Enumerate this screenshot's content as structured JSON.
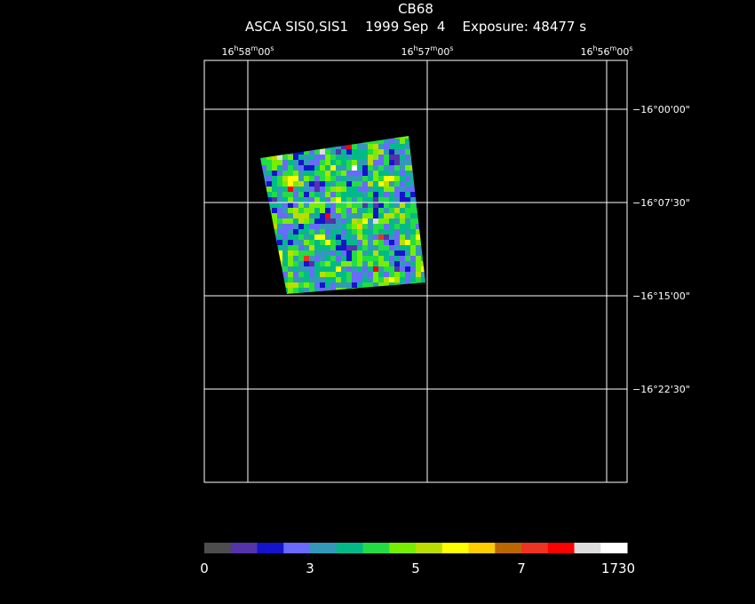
{
  "header": {
    "title": "CB68",
    "subtitle": "ASCA SIS0,SIS1    1999 Sep  4    Exposure: 48477 s"
  },
  "ra_labels": [
    [
      "16",
      "h",
      "58",
      "m",
      "00",
      "s"
    ],
    [
      "16",
      "h",
      "57",
      "m",
      "00",
      "s"
    ],
    [
      "16",
      "h",
      "56",
      "m",
      "00",
      "s"
    ]
  ],
  "dec_labels": [
    "−16°00'00\"",
    "−16°07'30\"",
    "−16°15'00\"",
    "−16°22'30\""
  ],
  "colorbar": {
    "colors": [
      "#4d4d4d",
      "#5533aa",
      "#1414cc",
      "#6a6aff",
      "#3399bb",
      "#00bb88",
      "#22dd44",
      "#77ee00",
      "#bbdd00",
      "#ffff00",
      "#ffcc00",
      "#bb6600",
      "#ee3322",
      "#ff0000",
      "#dddddd",
      "#ffffff"
    ],
    "labels": [
      "0",
      "3",
      "5",
      "7",
      "1730"
    ]
  }
}
